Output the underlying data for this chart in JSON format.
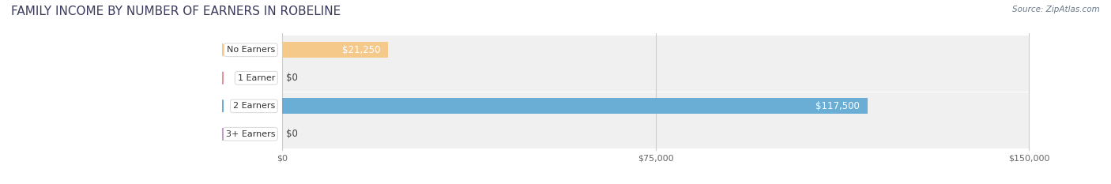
{
  "title": "FAMILY INCOME BY NUMBER OF EARNERS IN ROBELINE",
  "source": "Source: ZipAtlas.com",
  "categories": [
    "No Earners",
    "1 Earner",
    "2 Earners",
    "3+ Earners"
  ],
  "values": [
    21250,
    0,
    117500,
    0
  ],
  "max_value": 150000,
  "bar_colors": [
    "#f5c98a",
    "#e8909a",
    "#6aaed6",
    "#c4a0c8"
  ],
  "bar_bg_color": "#e8e8e8",
  "label_bg_color": "#ffffff",
  "label_colors": [
    "#f5c98a",
    "#e8909a",
    "#6aaed6",
    "#c4a0c8"
  ],
  "value_labels": [
    "$21,250",
    "$0",
    "$117,500",
    "$0"
  ],
  "x_ticks": [
    0,
    75000,
    150000
  ],
  "x_tick_labels": [
    "$0",
    "$75,000",
    "$150,000"
  ],
  "fig_width": 14.06,
  "fig_height": 2.33,
  "background_color": "#ffffff",
  "title_color": "#3a3a5c",
  "source_color": "#6b7b8d",
  "title_fontsize": 11,
  "bar_height": 0.55,
  "row_bg_color": "#f0f0f0"
}
